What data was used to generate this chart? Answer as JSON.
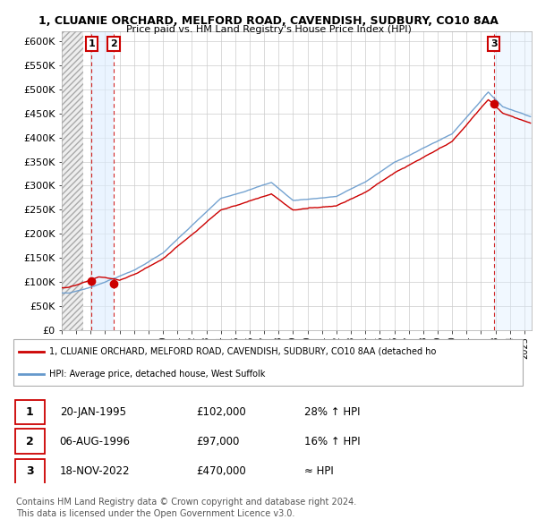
{
  "title_line1": "1, CLUANIE ORCHARD, MELFORD ROAD, CAVENDISH, SUDBURY, CO10 8AA",
  "title_line2": "Price paid vs. HM Land Registry's House Price Index (HPI)",
  "ylim": [
    0,
    620000
  ],
  "yticks": [
    0,
    50000,
    100000,
    150000,
    200000,
    250000,
    300000,
    350000,
    400000,
    450000,
    500000,
    550000,
    600000
  ],
  "ytick_labels": [
    "£0",
    "£50K",
    "£100K",
    "£150K",
    "£200K",
    "£250K",
    "£300K",
    "£350K",
    "£400K",
    "£450K",
    "£500K",
    "£550K",
    "£600K"
  ],
  "xlim_start": 1993,
  "xlim_end": 2025.5,
  "sale_years": [
    1995.055,
    1996.594,
    2022.88
  ],
  "sale_prices": [
    102000,
    97000,
    470000
  ],
  "sale_labels": [
    "1",
    "2",
    "3"
  ],
  "legend_property": "1, CLUANIE ORCHARD, MELFORD ROAD, CAVENDISH, SUDBURY, CO10 8AA (detached ho",
  "legend_hpi": "HPI: Average price, detached house, West Suffolk",
  "table_rows": [
    {
      "label": "1",
      "date": "20-JAN-1995",
      "price": "£102,000",
      "hpi": "28% ↑ HPI"
    },
    {
      "label": "2",
      "date": "06-AUG-1996",
      "price": "£97,000",
      "hpi": "16% ↑ HPI"
    },
    {
      "label": "3",
      "date": "18-NOV-2022",
      "price": "£470,000",
      "hpi": "≈ HPI"
    }
  ],
  "footer_line1": "Contains HM Land Registry data © Crown copyright and database right 2024.",
  "footer_line2": "This data is licensed under the Open Government Licence v3.0.",
  "property_line_color": "#cc0000",
  "hpi_line_color": "#6699cc",
  "hpi_fill_color": "#ddeeff",
  "hatch_fill_color": "#e8e8e8",
  "grid_color": "#cccccc"
}
